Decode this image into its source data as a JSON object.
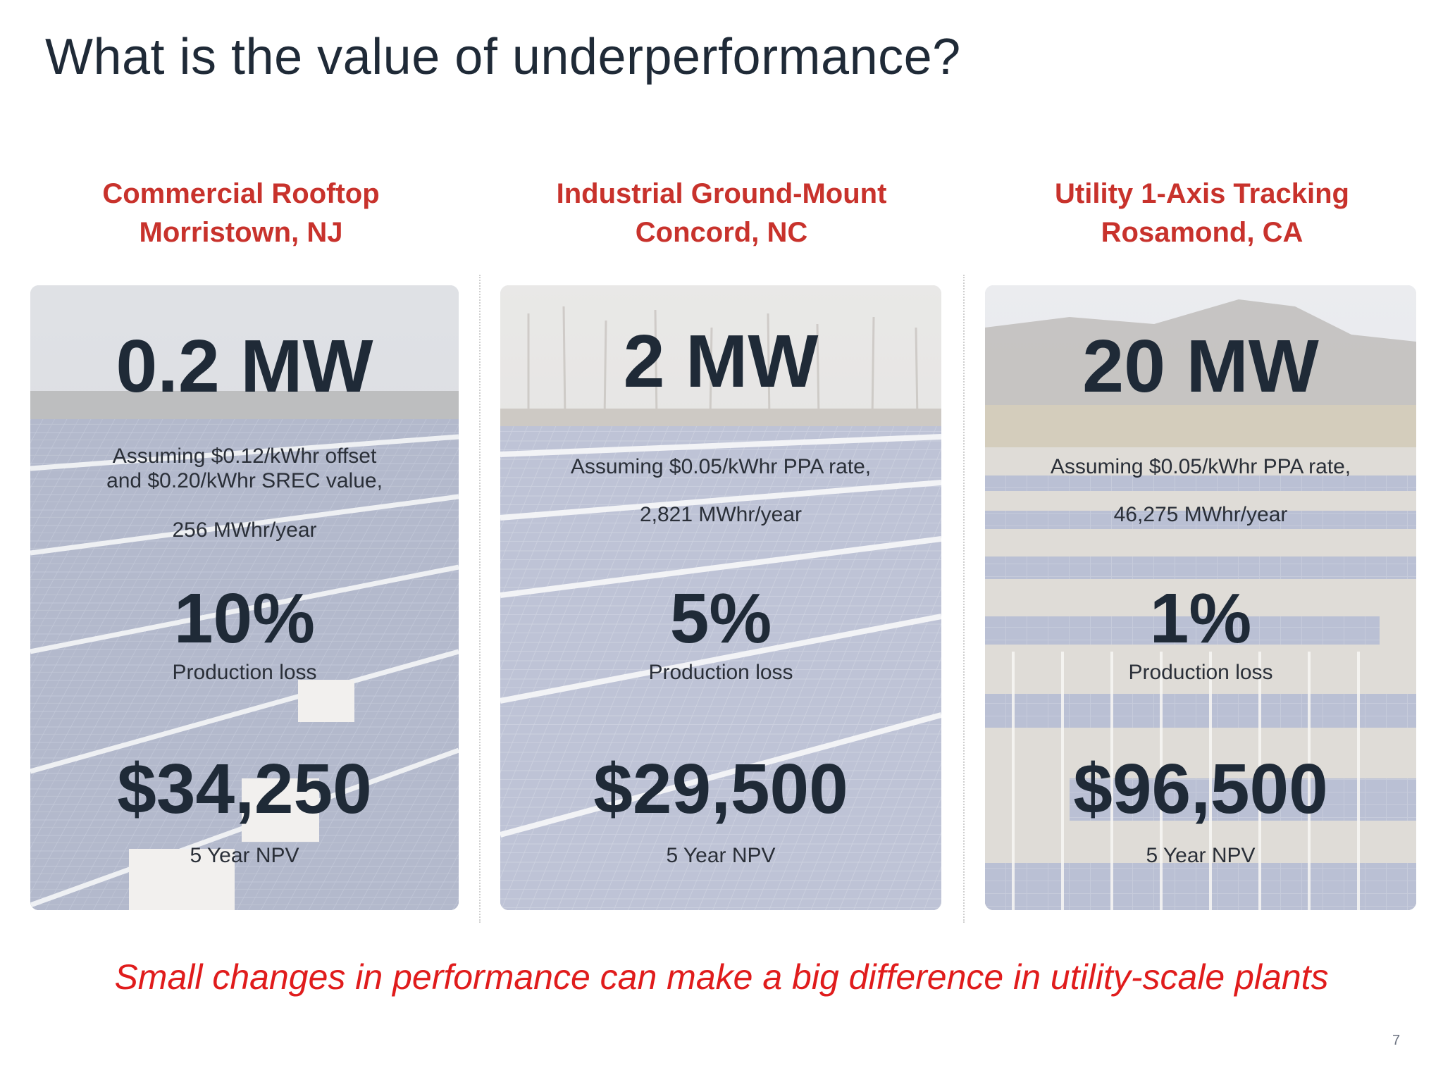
{
  "title": "What is the value of underperformance?",
  "columns": [
    {
      "heading_line1": "Commercial Rooftop",
      "heading_line2": "Morristown, NJ",
      "capacity": "0.2 MW",
      "assumption_line1": "Assuming $0.12/kWhr offset",
      "assumption_line2": "and $0.20/kWhr SREC value,",
      "production": "256 MWhr/year",
      "loss_percent": "10%",
      "loss_label": "Production loss",
      "npv_value": "$34,250",
      "npv_label": "5 Year NPV"
    },
    {
      "heading_line1": "Industrial Ground-Mount",
      "heading_line2": "Concord, NC",
      "capacity": "2 MW",
      "assumption_line1": "Assuming $0.05/kWhr PPA rate,",
      "production": "2,821 MWhr/year",
      "loss_percent": "5%",
      "loss_label": "Production loss",
      "npv_value": "$29,500",
      "npv_label": "5 Year NPV"
    },
    {
      "heading_line1": "Utility 1-Axis Tracking",
      "heading_line2": "Rosamond, CA",
      "capacity": "20 MW",
      "assumption_line1": "Assuming $0.05/kWhr PPA rate,",
      "production": "46,275 MWhr/year",
      "loss_percent": "1%",
      "loss_label": "Production loss",
      "npv_value": "$96,500",
      "npv_label": "5 Year NPV"
    }
  ],
  "tagline": "Small changes in performance can make a big difference in utility-scale plants",
  "page_number": "7",
  "colors": {
    "heading_red": "#c8322c",
    "tagline_red": "#e01c1c",
    "text_dark": "#1f2a37"
  }
}
